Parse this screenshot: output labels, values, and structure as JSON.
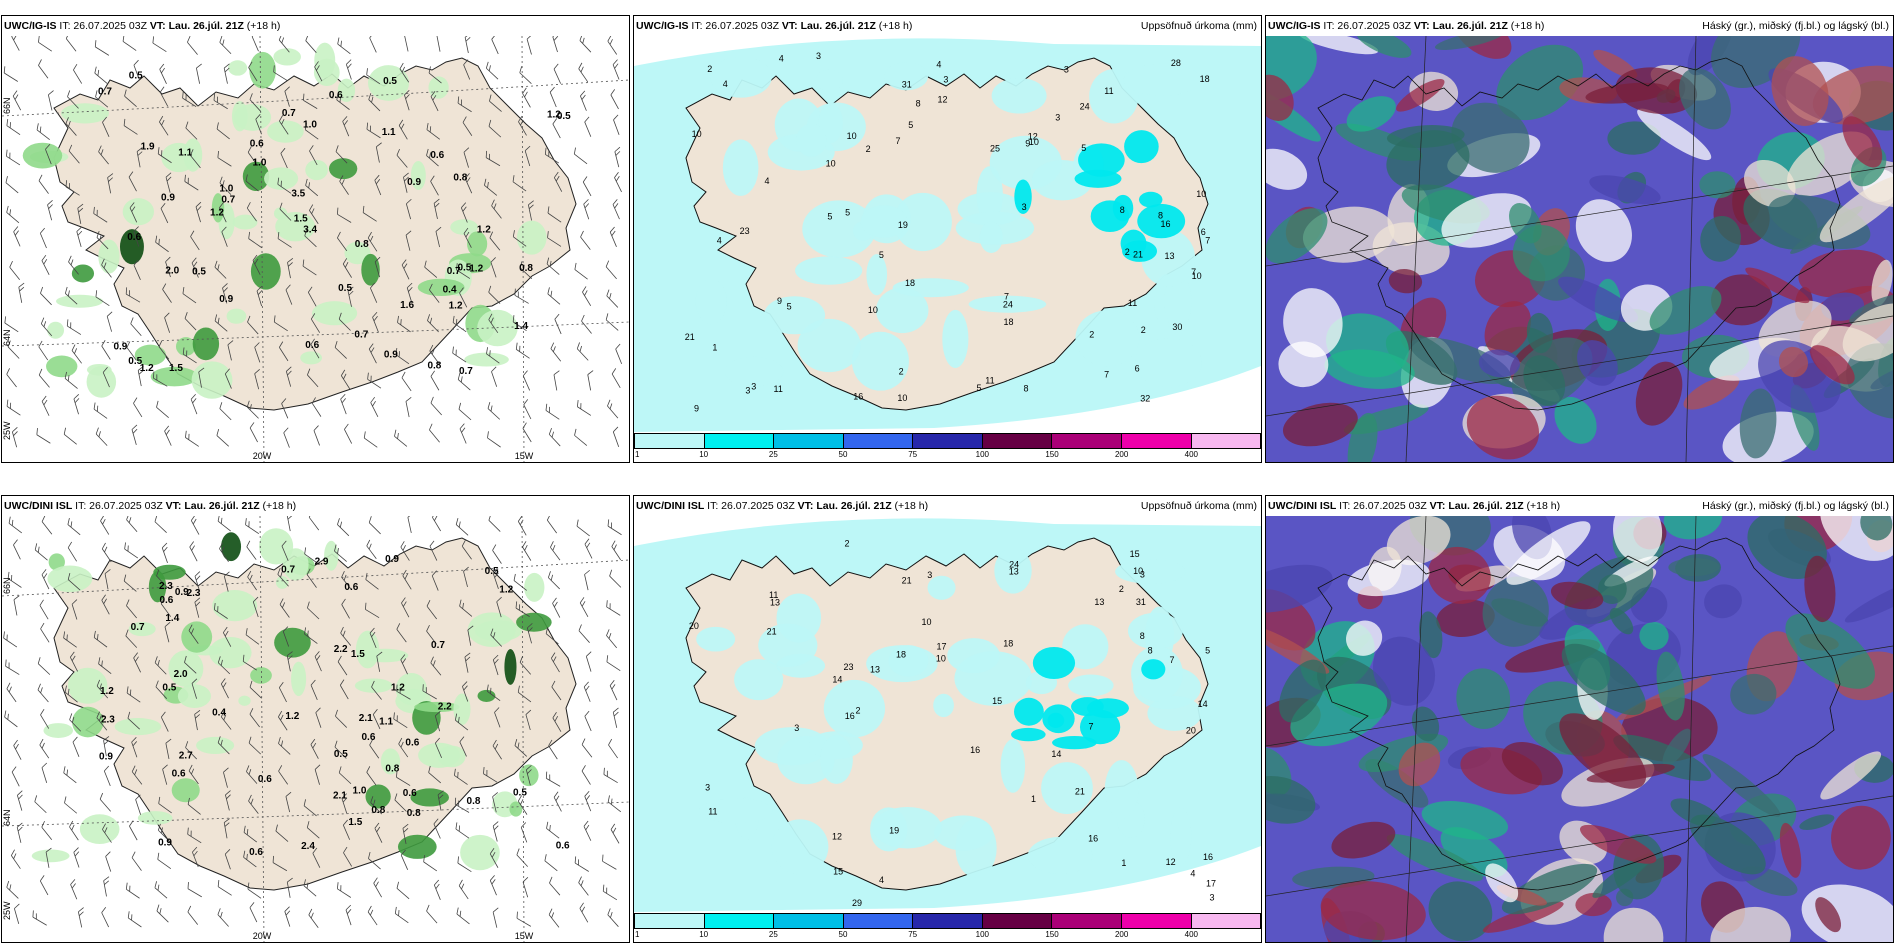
{
  "rows": [
    {
      "model": "UWC/IG-IS",
      "it_label": "IT: 26.07.2025 03Z",
      "vt_label": "VT: Lau. 26.júl. 21Z",
      "lead": "(+18 h)",
      "wind_values": [
        "1.4",
        "0.7",
        "0.8",
        "0.9",
        "0.5",
        "0.7",
        "0.7",
        "0.5",
        "0.7",
        "1.1",
        "2.0",
        "1.5",
        "0.6",
        "0.8",
        "1.0",
        "1.0",
        "0.5",
        "0.9",
        "1.2",
        "0.9",
        "0.6",
        "0.5",
        "0.9",
        "1.2",
        "1.1",
        "0.5",
        "0.7",
        "1.2",
        "1.2",
        "3.5",
        "1.2",
        "1.0",
        "0.5",
        "0.7",
        "0.6",
        "1.9",
        "0.9",
        "3.4",
        "1.5",
        "0.6",
        "0.8",
        "0.5",
        "1.2",
        "0.4",
        "0.6",
        "1.6",
        "0.8"
      ],
      "wind_lat_labels": [
        "66N",
        "64N",
        "25W"
      ],
      "wind_lon_labels": [
        "20W",
        "15W"
      ],
      "precip_title": "Uppsöfnuð úrkoma (mm)",
      "precip_values": [
        "3",
        "4",
        "5",
        "6",
        "10",
        "10",
        "5",
        "4",
        "4",
        "7",
        "3",
        "11",
        "10",
        "9",
        "7",
        "11",
        "7",
        "9",
        "5",
        "3",
        "2",
        "4",
        "5",
        "3",
        "5",
        "8",
        "3",
        "10",
        "32",
        "31",
        "24",
        "21",
        "28",
        "21",
        "25",
        "18",
        "18",
        "30",
        "13",
        "9",
        "5",
        "1",
        "2",
        "3",
        "24",
        "19",
        "16",
        "16",
        "18",
        "10",
        "23",
        "7",
        "11",
        "8",
        "10",
        "11",
        "12",
        "12",
        "6",
        "4",
        "8",
        "2",
        "2",
        "3",
        "7",
        "8",
        "5",
        "10",
        "10",
        "2",
        "2"
      ],
      "cloud_title": "Háský (gr.), miðský (fj.bl.) og lágský (bl.)"
    },
    {
      "model": "UWC/DINI ISL",
      "it_label": "IT: 26.07.2025 03Z",
      "vt_label": "VT: Lau. 26.júl. 21Z",
      "lead": "(+18 h)",
      "wind_values": [
        "0.8",
        "1.2",
        "0.6",
        "0.8",
        "0.9",
        "0.9",
        "1.5",
        "1.0",
        "2.1",
        "2.0",
        "2.3",
        "0.6",
        "0.9",
        "0.7",
        "0.5",
        "0.7",
        "0.8",
        "0.6",
        "0.8",
        "2.7",
        "0.6",
        "0.5",
        "2.2",
        "2.1",
        "0.9",
        "1.1",
        "1.5",
        "0.7",
        "0.6",
        "1.2",
        "2.3",
        "0.6",
        "1.4",
        "1.2",
        "2.2",
        "2.4",
        "1.2",
        "2.3",
        "0.5",
        "0.6",
        "0.5",
        "0.6",
        "2.9",
        "0.6",
        "0.4"
      ],
      "wind_lat_labels": [
        "66N",
        "64N",
        "25W"
      ],
      "wind_lon_labels": [
        "20W",
        "15W"
      ],
      "precip_title": "Uppsöfnuð úrkoma (mm)",
      "precip_values": [
        "12",
        "13",
        "12",
        "11",
        "10",
        "14",
        "10",
        "14",
        "5",
        "2",
        "3",
        "1",
        "8",
        "7",
        "29",
        "31",
        "19",
        "16",
        "24",
        "21",
        "20",
        "17",
        "23",
        "15",
        "13",
        "21",
        "16",
        "15",
        "18",
        "21",
        "20",
        "18",
        "16",
        "13",
        "13",
        "14",
        "17",
        "16",
        "15",
        "3",
        "2",
        "3",
        "4",
        "3",
        "7",
        "11",
        "10",
        "2",
        "1",
        "4",
        "8",
        "3"
      ],
      "cloud_title": "Háský (gr.), miðský (fj.bl.) og lágský (bl.)"
    }
  ],
  "legend": {
    "colors": [
      "#bdf7f7",
      "#00f0f0",
      "#00bfe6",
      "#3366ee",
      "#2727aa",
      "#660044",
      "#aa0077",
      "#ee00aa",
      "#f8b8f0"
    ],
    "ticks": [
      "1",
      "10",
      "25",
      "50",
      "75",
      "100",
      "150",
      "200",
      "400"
    ]
  }
}
